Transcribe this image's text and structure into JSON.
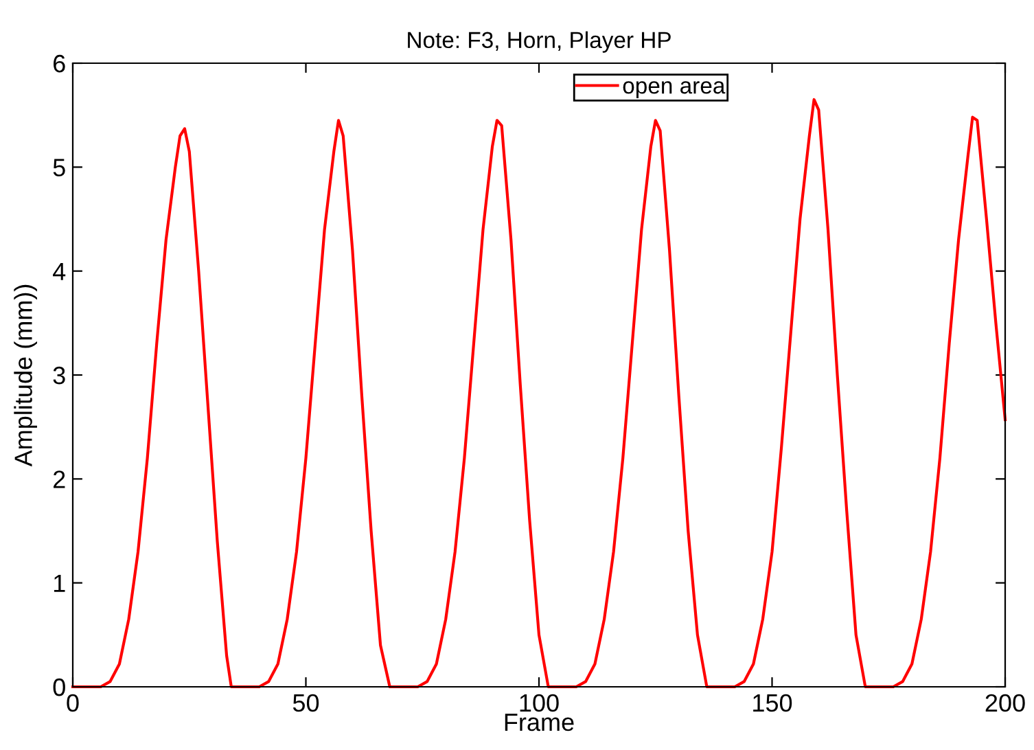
{
  "chart_data": {
    "type": "line",
    "title": "Note: F3, Horn, Player HP",
    "xlabel": "Frame",
    "ylabel": "Amplitude (mm))",
    "xlim": [
      0,
      200
    ],
    "xticks": [
      0,
      50,
      100,
      150,
      200
    ],
    "ylim": [
      0,
      6
    ],
    "yticks": [
      0,
      1,
      2,
      3,
      4,
      5,
      6
    ],
    "grid": false,
    "legend": "top",
    "marker": "none",
    "line_style": "solid",
    "series": [
      {
        "name": "open area",
        "color": "#ff0000",
        "x": [
          0,
          6,
          8,
          10,
          12,
          14,
          16,
          18,
          20,
          22,
          23,
          24,
          25,
          27,
          29,
          31,
          33,
          34,
          40,
          42,
          44,
          46,
          48,
          50,
          52,
          54,
          56,
          57,
          58,
          60,
          62,
          64,
          66,
          68,
          74,
          76,
          78,
          80,
          82,
          84,
          86,
          88,
          90,
          91,
          92,
          94,
          96,
          98,
          100,
          102,
          108,
          110,
          112,
          114,
          116,
          118,
          120,
          122,
          124,
          125,
          126,
          128,
          130,
          132,
          134,
          136,
          142,
          144,
          146,
          148,
          150,
          152,
          154,
          156,
          158,
          159,
          160,
          162,
          164,
          166,
          168,
          170,
          176,
          178,
          180,
          182,
          184,
          186,
          188,
          190,
          192,
          193,
          194,
          196,
          198,
          200
        ],
        "values": [
          0,
          0,
          0.05,
          0.22,
          0.65,
          1.3,
          2.2,
          3.3,
          4.3,
          5.0,
          5.3,
          5.37,
          5.15,
          4.0,
          2.7,
          1.4,
          0.3,
          0,
          0,
          0.05,
          0.22,
          0.65,
          1.3,
          2.2,
          3.3,
          4.4,
          5.15,
          5.45,
          5.3,
          4.2,
          2.8,
          1.5,
          0.4,
          0,
          0,
          0.05,
          0.22,
          0.65,
          1.3,
          2.2,
          3.3,
          4.4,
          5.2,
          5.45,
          5.4,
          4.3,
          2.9,
          1.6,
          0.5,
          0,
          0,
          0.05,
          0.22,
          0.65,
          1.3,
          2.2,
          3.3,
          4.4,
          5.2,
          5.45,
          5.35,
          4.2,
          2.8,
          1.5,
          0.5,
          0,
          0,
          0.05,
          0.22,
          0.65,
          1.3,
          2.3,
          3.4,
          4.5,
          5.3,
          5.65,
          5.55,
          4.4,
          3.0,
          1.7,
          0.5,
          0,
          0,
          0.05,
          0.22,
          0.65,
          1.3,
          2.2,
          3.3,
          4.3,
          5.1,
          5.48,
          5.45,
          4.5,
          3.5,
          2.57
        ]
      }
    ]
  }
}
